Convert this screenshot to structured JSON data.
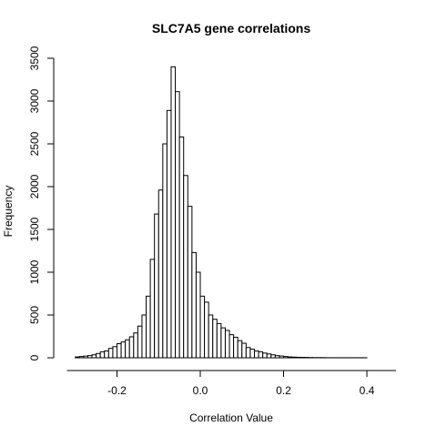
{
  "chart_data": {
    "type": "bar",
    "title": "SLC7A5 gene correlations",
    "xlabel": "Correlation Value",
    "ylabel": "Frequency",
    "bin_start": -0.3,
    "bin_width": 0.01,
    "values": [
      10,
      15,
      20,
      25,
      35,
      50,
      70,
      80,
      110,
      130,
      165,
      185,
      210,
      245,
      290,
      370,
      500,
      720,
      1150,
      1680,
      1960,
      2500,
      2890,
      3400,
      3110,
      2580,
      2130,
      1770,
      1230,
      1000,
      720,
      650,
      500,
      450,
      400,
      350,
      320,
      270,
      240,
      200,
      170,
      120,
      100,
      80,
      70,
      55,
      45,
      35,
      25,
      20,
      15,
      10,
      8,
      6,
      5,
      4,
      3,
      2,
      2,
      2,
      1,
      1,
      1,
      1,
      1,
      1,
      1,
      1,
      1,
      1
    ],
    "xlim": [
      -0.32,
      0.47
    ],
    "ylim": [
      0,
      3500
    ],
    "xticks": [
      -0.2,
      0.0,
      0.2,
      0.4
    ],
    "xtick_labels": [
      "-0.2",
      "0.0",
      "0.2",
      "0.4"
    ],
    "yticks": [
      0,
      500,
      1000,
      1500,
      2000,
      2500,
      3000,
      3500
    ],
    "ytick_labels": [
      "0",
      "500",
      "1000",
      "1500",
      "2000",
      "2500",
      "3000",
      "3500"
    ],
    "grid": false,
    "colors": {
      "bar_fill": "#ffffff",
      "bar_stroke": "#000000"
    }
  }
}
